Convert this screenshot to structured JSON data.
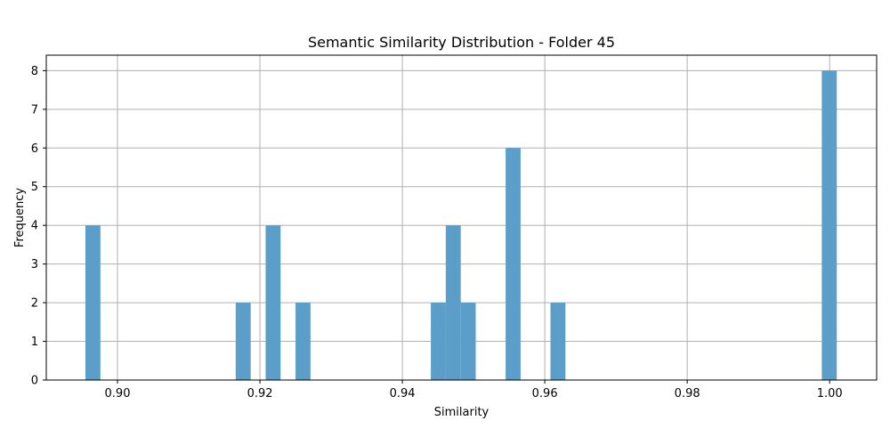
{
  "chart_data": {
    "type": "bar",
    "title": "Semantic Similarity Distribution - Folder 45",
    "xlabel": "Similarity",
    "ylabel": "Frequency",
    "xlim": [
      0.89,
      1.0066
    ],
    "ylim": [
      0,
      8.4
    ],
    "xticks": [
      0.9,
      0.92,
      0.94,
      0.96,
      0.98,
      1.0
    ],
    "xtick_labels": [
      "0.90",
      "0.92",
      "0.94",
      "0.96",
      "0.98",
      "1.00"
    ],
    "yticks": [
      0,
      1,
      2,
      3,
      4,
      5,
      6,
      7,
      8
    ],
    "ytick_labels": [
      "0",
      "1",
      "2",
      "3",
      "4",
      "5",
      "6",
      "7",
      "8"
    ],
    "grid": true,
    "bar_color": "#5b9ec9",
    "bin_width": 0.0021,
    "bins": [
      {
        "left": 0.8955,
        "count": 4
      },
      {
        "left": 0.9166,
        "count": 2
      },
      {
        "left": 0.9208,
        "count": 4
      },
      {
        "left": 0.925,
        "count": 2
      },
      {
        "left": 0.944,
        "count": 2
      },
      {
        "left": 0.9461,
        "count": 4
      },
      {
        "left": 0.9482,
        "count": 2
      },
      {
        "left": 0.9545,
        "count": 6
      },
      {
        "left": 0.9608,
        "count": 2
      },
      {
        "left": 0.9989,
        "count": 8
      }
    ]
  }
}
